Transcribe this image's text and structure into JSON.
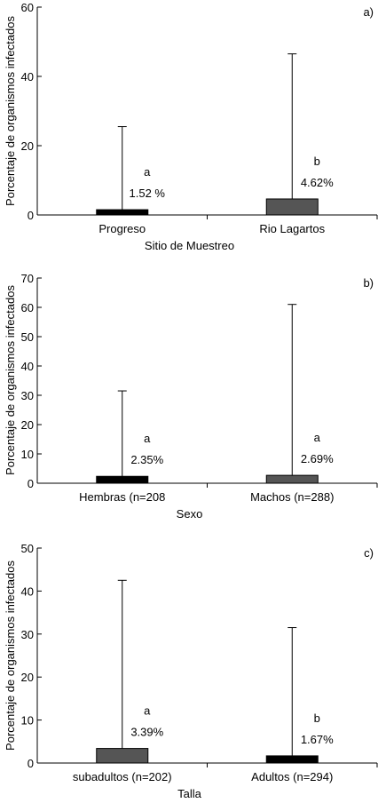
{
  "chart_data": [
    {
      "type": "bar",
      "panel_label": "a)",
      "categories": [
        "Progreso",
        "Rio Lagartos"
      ],
      "values": [
        1.52,
        4.62
      ],
      "error_upper": [
        25.5,
        46.5
      ],
      "value_labels": [
        "1.52 %",
        "4.62%"
      ],
      "group_letters": [
        "a",
        "b"
      ],
      "bar_colors": [
        "#000000",
        "#555555"
      ],
      "xlabel": "Sitio de Muestreo",
      "ylabel": "Porcentaje de organismos infectados",
      "ylim": [
        0,
        60
      ],
      "yticks": [
        "0",
        "20",
        "40",
        "60"
      ],
      "ytick_values": [
        0,
        20,
        40,
        60
      ],
      "grid": false
    },
    {
      "type": "bar",
      "panel_label": "b)",
      "categories": [
        "Hembras (n=208",
        "Machos (n=288)"
      ],
      "values": [
        2.35,
        2.69
      ],
      "error_upper": [
        31.5,
        61.0
      ],
      "value_labels": [
        "2.35%",
        "2.69%"
      ],
      "group_letters": [
        "a",
        "a"
      ],
      "bar_colors": [
        "#000000",
        "#555555"
      ],
      "xlabel": "Sexo",
      "ylabel": "Porcentaje de organismos infectados",
      "ylim": [
        0,
        70
      ],
      "yticks": [
        "0",
        "10",
        "20",
        "30",
        "40",
        "50",
        "60",
        "70"
      ],
      "ytick_values": [
        0,
        10,
        20,
        30,
        40,
        50,
        60,
        70
      ],
      "grid": false
    },
    {
      "type": "bar",
      "panel_label": "c)",
      "categories": [
        "subadultos (n=202)",
        "Adultos (n=294)"
      ],
      "values": [
        3.39,
        1.67
      ],
      "error_upper": [
        42.5,
        31.5
      ],
      "value_labels": [
        "3.39%",
        "1.67%"
      ],
      "group_letters": [
        "a",
        "b"
      ],
      "bar_colors": [
        "#555555",
        "#000000"
      ],
      "xlabel": "Talla",
      "ylabel": "Porcentaje de organismos infectados",
      "ylim": [
        0,
        50
      ],
      "yticks": [
        "0",
        "10",
        "20",
        "30",
        "40",
        "50"
      ],
      "ytick_values": [
        0,
        10,
        20,
        30,
        40,
        50
      ],
      "grid": false
    }
  ]
}
